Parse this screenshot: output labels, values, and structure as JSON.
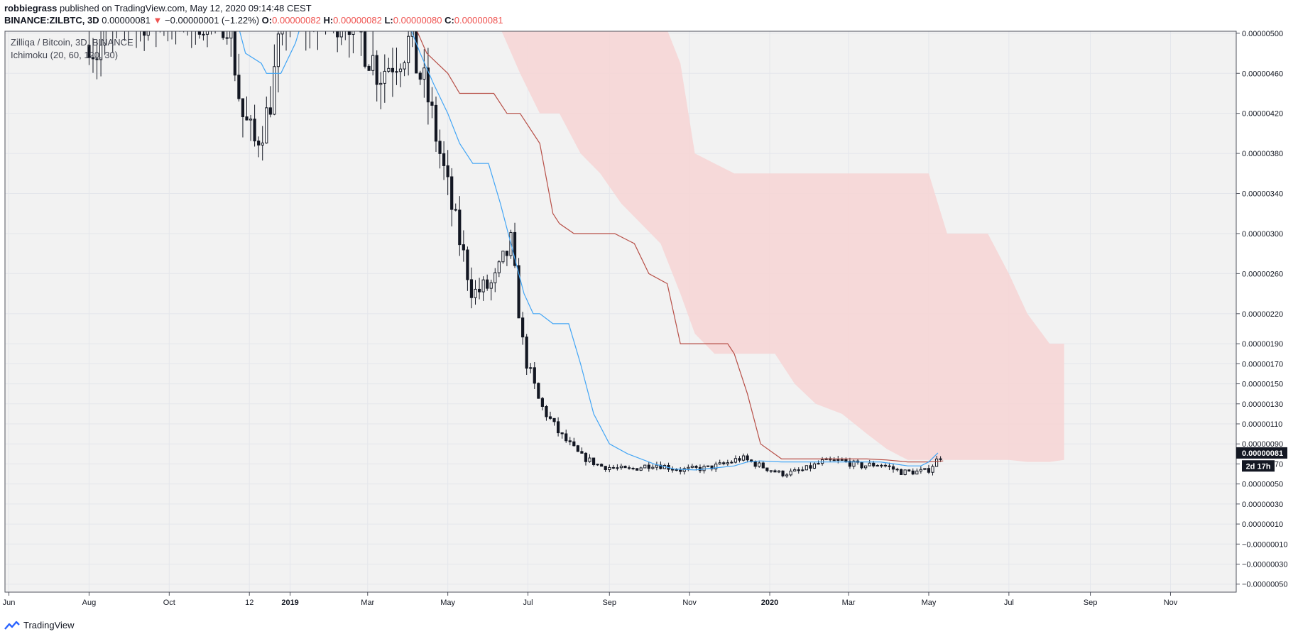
{
  "header": {
    "publisher": "robbiegrass",
    "published_text": "published on TradingView.com, May 12, 2020 09:14:48 CEST",
    "symbol": "BINANCE:ZILBTC, 3D",
    "last_price": "0.00000081",
    "change_arrow": "▼",
    "change": "−0.00000001 (−1.22%)",
    "o_label": "O:",
    "o_value": "0.00000082",
    "h_label": "H:",
    "h_value": "0.00000082",
    "l_label": "L:",
    "l_value": "0.00000080",
    "c_label": "C:",
    "c_value": "0.00000081"
  },
  "pane": {
    "title": "Zilliqa / Bitcoin, 3D, BINANCE",
    "indicator": "Ichimoku (20, 60, 120, 30)"
  },
  "footer": {
    "brand": "TradingView"
  },
  "colors": {
    "background": "#f2f2f2",
    "candle": "#131722",
    "conversion_line": "#42a5f5",
    "base_line": "#b74f47",
    "cloud_fill": "#f7d5d5",
    "price_label_bg": "#131722",
    "red_value": "#ef5350"
  },
  "chart_data": {
    "type": "candlestick",
    "title": "Zilliqa / Bitcoin, 3D, BINANCE",
    "y_unit": "BTC",
    "ylim": [
      -5.8e-07,
      5.02e-06
    ],
    "y_ticks": [
      "0.00000500",
      "0.00000460",
      "0.00000420",
      "0.00000380",
      "0.00000340",
      "0.00000300",
      "0.00000260",
      "0.00000220",
      "0.00000190",
      "0.00000170",
      "0.00000150",
      "0.00000130",
      "0.00000110",
      "0.00000090",
      "0.00000070",
      "0.00000050",
      "0.00000030",
      "0.00000010",
      "−0.00000010",
      "−0.00000030",
      "−0.00000050"
    ],
    "y_tick_values": [
      5e-06,
      4.6e-06,
      4.2e-06,
      3.8e-06,
      3.4e-06,
      3e-06,
      2.6e-06,
      2.2e-06,
      1.9e-06,
      1.7e-06,
      1.5e-06,
      1.3e-06,
      1.1e-06,
      9e-07,
      7e-07,
      5e-07,
      3e-07,
      1e-07,
      -1e-07,
      -3e-07,
      -5e-07
    ],
    "x_ticks": [
      {
        "label": "Jun",
        "date": "2018-06-01",
        "bold": false
      },
      {
        "label": "Aug",
        "date": "2018-08-01",
        "bold": false
      },
      {
        "label": "Oct",
        "date": "2018-10-01",
        "bold": false
      },
      {
        "label": "12",
        "date": "2018-12-01",
        "bold": false
      },
      {
        "label": "2019",
        "date": "2019-01-01",
        "bold": true
      },
      {
        "label": "Mar",
        "date": "2019-03-01",
        "bold": false
      },
      {
        "label": "May",
        "date": "2019-05-01",
        "bold": false
      },
      {
        "label": "Jul",
        "date": "2019-07-01",
        "bold": false
      },
      {
        "label": "Sep",
        "date": "2019-09-01",
        "bold": false
      },
      {
        "label": "Nov",
        "date": "2019-11-01",
        "bold": false
      },
      {
        "label": "2020",
        "date": "2020-01-01",
        "bold": true
      },
      {
        "label": "Mar",
        "date": "2020-03-01",
        "bold": false
      },
      {
        "label": "May",
        "date": "2020-05-01",
        "bold": false
      },
      {
        "label": "Jul",
        "date": "2020-07-01",
        "bold": false
      },
      {
        "label": "Sep",
        "date": "2020-09-01",
        "bold": false
      },
      {
        "label": "Nov",
        "date": "2020-11-01",
        "bold": false
      }
    ],
    "xlim": [
      "2018-05-29",
      "2020-12-21"
    ],
    "candle_anchor": {
      "dates": [
        "2018-08-01",
        "2018-08-06",
        "2018-09-01",
        "2018-10-01",
        "2018-11-15",
        "2018-11-25",
        "2018-12-05",
        "2018-12-15",
        "2018-12-28",
        "2019-01-15",
        "2019-02-15",
        "2019-03-10",
        "2019-04-01",
        "2019-04-15",
        "2019-05-05",
        "2019-05-20",
        "2019-06-05",
        "2019-06-18",
        "2019-06-28",
        "2019-07-10",
        "2019-07-25",
        "2019-08-10",
        "2019-08-25",
        "2019-09-15",
        "2019-10-05",
        "2019-10-25",
        "2019-11-15",
        "2019-11-28",
        "2019-12-10",
        "2019-12-25",
        "2020-01-10",
        "2020-01-25",
        "2020-02-10",
        "2020-02-25",
        "2020-03-10",
        "2020-03-25",
        "2020-04-10",
        "2020-04-20",
        "2020-04-30",
        "2020-05-12"
      ],
      "values": [
        5e-06,
        4.8e-06,
        5.2e-06,
        5.2e-06,
        5.2e-06,
        4.2e-06,
        3.9e-06,
        4.2e-06,
        5.2e-06,
        5.2e-06,
        5.2e-06,
        4.6e-06,
        4.9e-06,
        4.4e-06,
        3.2e-06,
        2.4e-06,
        2.5e-06,
        2.9e-06,
        1.8e-06,
        1.3e-06,
        1e-06,
        7.8e-07,
        6.8e-07,
        6.4e-07,
        7e-07,
        6.4e-07,
        6.6e-07,
        7e-07,
        7.6e-07,
        6.8e-07,
        6e-07,
        6.3e-07,
        7.2e-07,
        7.3e-07,
        6.8e-07,
        7e-07,
        6.2e-07,
        6.2e-07,
        6.3e-07,
        8.1e-07
      ]
    },
    "conversion_line": {
      "dates": [
        "2018-11-20",
        "2018-11-28",
        "2018-12-10",
        "2018-12-14",
        "2018-12-20",
        "2018-12-25",
        "2019-01-05",
        "2019-01-12",
        "2019-01-20",
        "2019-02-01",
        "2019-02-15",
        "2019-03-01",
        "2019-03-15",
        "2019-04-01",
        "2019-04-10",
        "2019-04-20",
        "2019-05-01",
        "2019-05-10",
        "2019-05-20",
        "2019-06-01",
        "2019-06-10",
        "2019-06-20",
        "2019-06-28",
        "2019-07-05",
        "2019-07-10",
        "2019-07-20",
        "2019-08-01",
        "2019-08-10",
        "2019-08-20",
        "2019-09-01",
        "2019-09-15",
        "2019-10-05",
        "2019-10-20",
        "2019-11-05",
        "2019-11-20",
        "2019-12-05",
        "2019-12-15",
        "2019-12-25",
        "2020-01-10",
        "2020-01-25",
        "2020-02-10",
        "2020-02-25",
        "2020-03-10",
        "2020-03-25",
        "2020-04-05",
        "2020-04-15",
        "2020-04-25",
        "2020-05-01",
        "2020-05-08"
      ],
      "values": [
        5.2e-06,
        4.8e-06,
        4.7e-06,
        4.6e-06,
        4.6e-06,
        4.6e-06,
        4.9e-06,
        5.2e-06,
        5.2e-06,
        5.2e-06,
        5.2e-06,
        5.2e-06,
        5.2e-06,
        5.1e-06,
        4.8e-06,
        4.5e-06,
        4.2e-06,
        3.9e-06,
        3.7e-06,
        3.7e-06,
        3.3e-06,
        2.8e-06,
        2.4e-06,
        2.2e-06,
        2.2e-06,
        2.1e-06,
        2.1e-06,
        1.7e-06,
        1.2e-06,
        9e-07,
        8e-07,
        7e-07,
        6.5e-07,
        6.4e-07,
        6.6e-07,
        6.8e-07,
        7.2e-07,
        7.3e-07,
        7.2e-07,
        7.2e-07,
        7.2e-07,
        7.2e-07,
        7.2e-07,
        7.2e-07,
        7e-07,
        6.8e-07,
        6.8e-07,
        7.2e-07,
        8.1e-07
      ]
    },
    "base_line": {
      "dates": [
        "2019-03-25",
        "2019-04-05",
        "2019-04-15",
        "2019-05-01",
        "2019-05-10",
        "2019-05-30",
        "2019-06-05",
        "2019-06-15",
        "2019-06-25",
        "2019-07-10",
        "2019-07-20",
        "2019-07-25",
        "2019-08-05",
        "2019-08-20",
        "2019-09-01",
        "2019-09-05",
        "2019-09-20",
        "2019-10-01",
        "2019-10-15",
        "2019-10-25",
        "2019-11-15",
        "2019-11-30",
        "2019-12-05",
        "2019-12-15",
        "2019-12-25",
        "2020-01-10",
        "2020-01-25",
        "2020-02-10",
        "2020-02-25",
        "2020-03-15",
        "2020-03-30",
        "2020-04-15",
        "2020-04-30",
        "2020-05-12"
      ],
      "values": [
        5.2e-06,
        5.1e-06,
        4.8e-06,
        4.6e-06,
        4.4e-06,
        4.4e-06,
        4.4e-06,
        4.2e-06,
        4.2e-06,
        3.9e-06,
        3.2e-06,
        3.1e-06,
        3e-06,
        3e-06,
        3e-06,
        3e-06,
        2.9e-06,
        2.6e-06,
        2.5e-06,
        1.9e-06,
        1.9e-06,
        1.9e-06,
        1.8e-06,
        1.4e-06,
        9e-07,
        7.5e-07,
        7.5e-07,
        7.5e-07,
        7.5e-07,
        7.5e-07,
        7.4e-07,
        7.2e-07,
        7.2e-07,
        7.3e-07
      ]
    },
    "cloud": {
      "dates": [
        "2019-05-25",
        "2019-06-05",
        "2019-06-15",
        "2019-06-25",
        "2019-07-10",
        "2019-07-25",
        "2019-08-10",
        "2019-08-25",
        "2019-09-10",
        "2019-09-25",
        "2019-10-10",
        "2019-10-25",
        "2019-11-05",
        "2019-11-20",
        "2019-12-05",
        "2019-12-20",
        "2020-01-05",
        "2020-01-20",
        "2020-02-05",
        "2020-02-25",
        "2020-03-15",
        "2020-03-30",
        "2020-04-15",
        "2020-05-01",
        "2020-05-15",
        "2020-06-01",
        "2020-06-15",
        "2020-07-01",
        "2020-07-15",
        "2020-08-01",
        "2020-08-12"
      ],
      "upper": [
        5.2e-06,
        5.2e-06,
        5.2e-06,
        5.2e-06,
        5.2e-06,
        5.2e-06,
        5.2e-06,
        5.2e-06,
        5.2e-06,
        5.2e-06,
        5.2e-06,
        4.7e-06,
        3.8e-06,
        3.7e-06,
        3.6e-06,
        3.6e-06,
        3.6e-06,
        3.6e-06,
        3.6e-06,
        3.6e-06,
        3.6e-06,
        3.6e-06,
        3.6e-06,
        3.6e-06,
        3e-06,
        3e-06,
        3e-06,
        2.6e-06,
        2.2e-06,
        1.9e-06,
        1.9e-06
      ],
      "lower": [
        5.2e-06,
        5.2e-06,
        4.9e-06,
        4.6e-06,
        4.2e-06,
        4.2e-06,
        3.8e-06,
        3.6e-06,
        3.3e-06,
        3.1e-06,
        2.9e-06,
        2.4e-06,
        2e-06,
        1.8e-06,
        1.8e-06,
        1.8e-06,
        1.8e-06,
        1.5e-06,
        1.3e-06,
        1.2e-06,
        1e-06,
        8.5e-07,
        7.4e-07,
        7.4e-07,
        7.4e-07,
        7.4e-07,
        7.4e-07,
        7.4e-07,
        7.2e-07,
        7.2e-07,
        7.4e-07
      ]
    },
    "last_price_label": "0.00000081",
    "last_price_value": 8.1e-07,
    "countdown_label": "2d 17h",
    "countdown_value_y": 6.8e-07
  }
}
